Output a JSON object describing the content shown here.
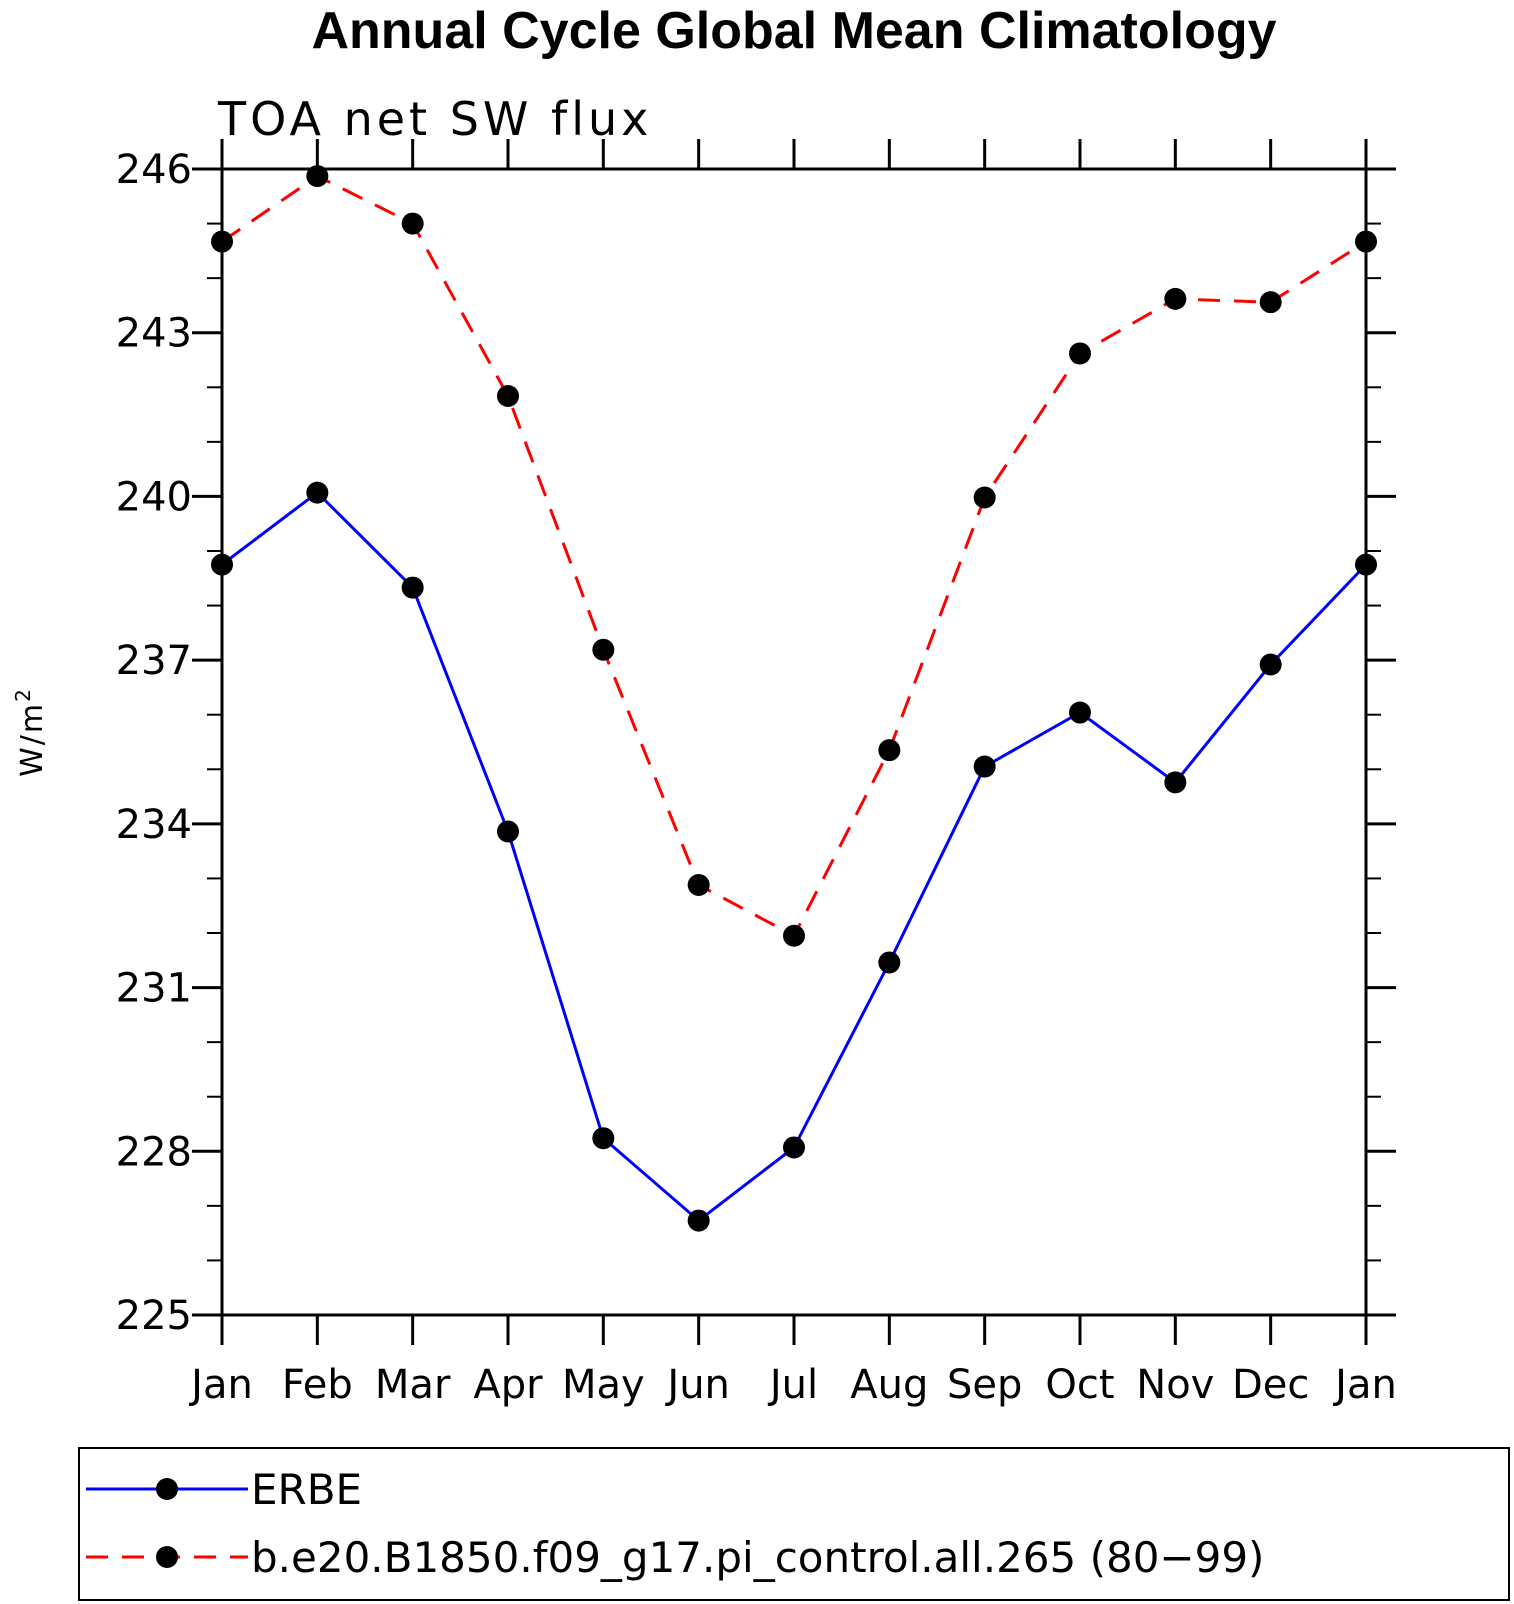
{
  "chart_data": {
    "type": "line",
    "title": "Annual Cycle Global Mean Climatology",
    "subtitle": "TOA net SW flux",
    "ylabel": "W/m",
    "ylabel_superscript": "2",
    "categories": [
      "Jan",
      "Feb",
      "Mar",
      "Apr",
      "May",
      "Jun",
      "Jul",
      "Aug",
      "Sep",
      "Oct",
      "Nov",
      "Dec",
      "Jan"
    ],
    "ylim": [
      225,
      246
    ],
    "yticks": [
      225,
      228,
      231,
      234,
      237,
      240,
      243,
      246
    ],
    "ytick_labels": [
      "225",
      "228",
      "231",
      "234",
      "237",
      "240",
      "243",
      "246"
    ],
    "series": [
      {
        "name": "ERBE",
        "color": "#0000ff",
        "dash": "solid",
        "values": [
          238.75,
          240.07,
          238.33,
          233.86,
          228.24,
          226.73,
          228.07,
          231.46,
          235.05,
          236.04,
          234.76,
          236.92,
          238.75
        ]
      },
      {
        "name": "b.e20.B1850.f09_g17.pi_control.all.265 (80−99)",
        "color": "#ff0000",
        "dash": "dashed",
        "values": [
          244.67,
          245.87,
          245.0,
          241.84,
          237.19,
          232.88,
          231.95,
          235.35,
          239.98,
          242.62,
          243.62,
          243.56,
          244.67
        ]
      }
    ],
    "marker": "filled-circle",
    "marker_color": "#000000",
    "grid": false,
    "legend_placement": "bottom"
  }
}
